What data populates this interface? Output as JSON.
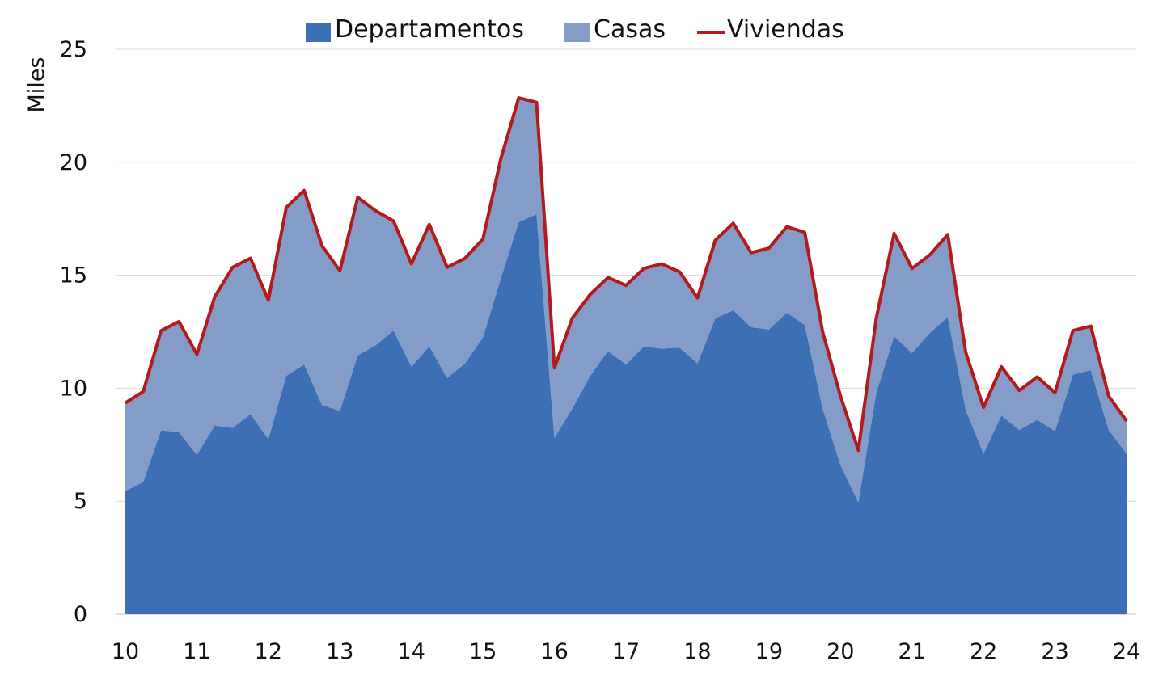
{
  "chart_data": {
    "type": "area",
    "ylabel": "Miles",
    "ylim": [
      0,
      25
    ],
    "y_ticks": [
      "0",
      "5",
      "10",
      "15",
      "20",
      "25"
    ],
    "x_ticks": [
      "10",
      "11",
      "12",
      "13",
      "14",
      "15",
      "16",
      "17",
      "18",
      "19",
      "20",
      "21",
      "22",
      "23",
      "24"
    ],
    "x_start": 10,
    "x_step": 0.25,
    "grid": true,
    "legend_position": "top",
    "colors": {
      "departamentos": "#3d6fb4",
      "casas": "#849dc8",
      "viviendas": "#b31a1c",
      "grid": "#d9d9d9"
    },
    "series": [
      {
        "name": "Departamentos",
        "kind": "area",
        "values": [
          5.45,
          5.85,
          8.15,
          8.05,
          7.05,
          8.35,
          8.25,
          8.85,
          7.75,
          10.55,
          11.05,
          9.25,
          9.0,
          11.45,
          11.9,
          12.55,
          10.95,
          11.85,
          10.45,
          11.1,
          12.25,
          14.85,
          17.35,
          17.7,
          7.8,
          9.1,
          10.55,
          11.65,
          11.05,
          11.85,
          11.75,
          11.8,
          11.1,
          13.1,
          13.45,
          12.7,
          12.6,
          13.35,
          12.8,
          9.1,
          6.6,
          4.95,
          9.8,
          12.3,
          11.55,
          12.45,
          13.15,
          9.05,
          7.1,
          8.8,
          8.15,
          8.6,
          8.1,
          10.6,
          10.8,
          8.15,
          7.1
        ]
      },
      {
        "name": "Casas",
        "kind": "area",
        "values": [
          3.9,
          4.0,
          4.4,
          4.9,
          4.45,
          5.7,
          7.1,
          6.9,
          6.15,
          7.45,
          7.7,
          7.05,
          6.2,
          7.0,
          5.95,
          4.85,
          4.55,
          5.4,
          4.9,
          4.65,
          4.35,
          5.3,
          5.5,
          4.95,
          3.1,
          4.0,
          3.6,
          3.25,
          3.5,
          3.45,
          3.75,
          3.35,
          2.9,
          3.45,
          3.85,
          3.3,
          3.6,
          3.8,
          4.1,
          3.4,
          3.05,
          2.3,
          3.3,
          4.55,
          3.75,
          3.45,
          3.65,
          2.55,
          2.05,
          2.15,
          1.75,
          1.9,
          1.7,
          1.95,
          1.95,
          1.5,
          1.45
        ]
      },
      {
        "name": "Viviendas",
        "kind": "line",
        "values": [
          9.35,
          9.85,
          12.55,
          12.95,
          11.5,
          14.05,
          15.35,
          15.75,
          13.9,
          18.0,
          18.75,
          16.3,
          15.2,
          18.45,
          17.85,
          17.4,
          15.5,
          17.25,
          15.35,
          15.75,
          16.6,
          20.15,
          22.85,
          22.65,
          10.9,
          13.1,
          14.15,
          14.9,
          14.55,
          15.3,
          15.5,
          15.15,
          14.0,
          16.55,
          17.3,
          16.0,
          16.2,
          17.15,
          16.9,
          12.5,
          9.65,
          7.25,
          13.1,
          16.85,
          15.3,
          15.9,
          16.8,
          11.6,
          9.15,
          10.95,
          9.9,
          10.5,
          9.8,
          12.55,
          12.75,
          9.65,
          8.55
        ]
      }
    ]
  }
}
